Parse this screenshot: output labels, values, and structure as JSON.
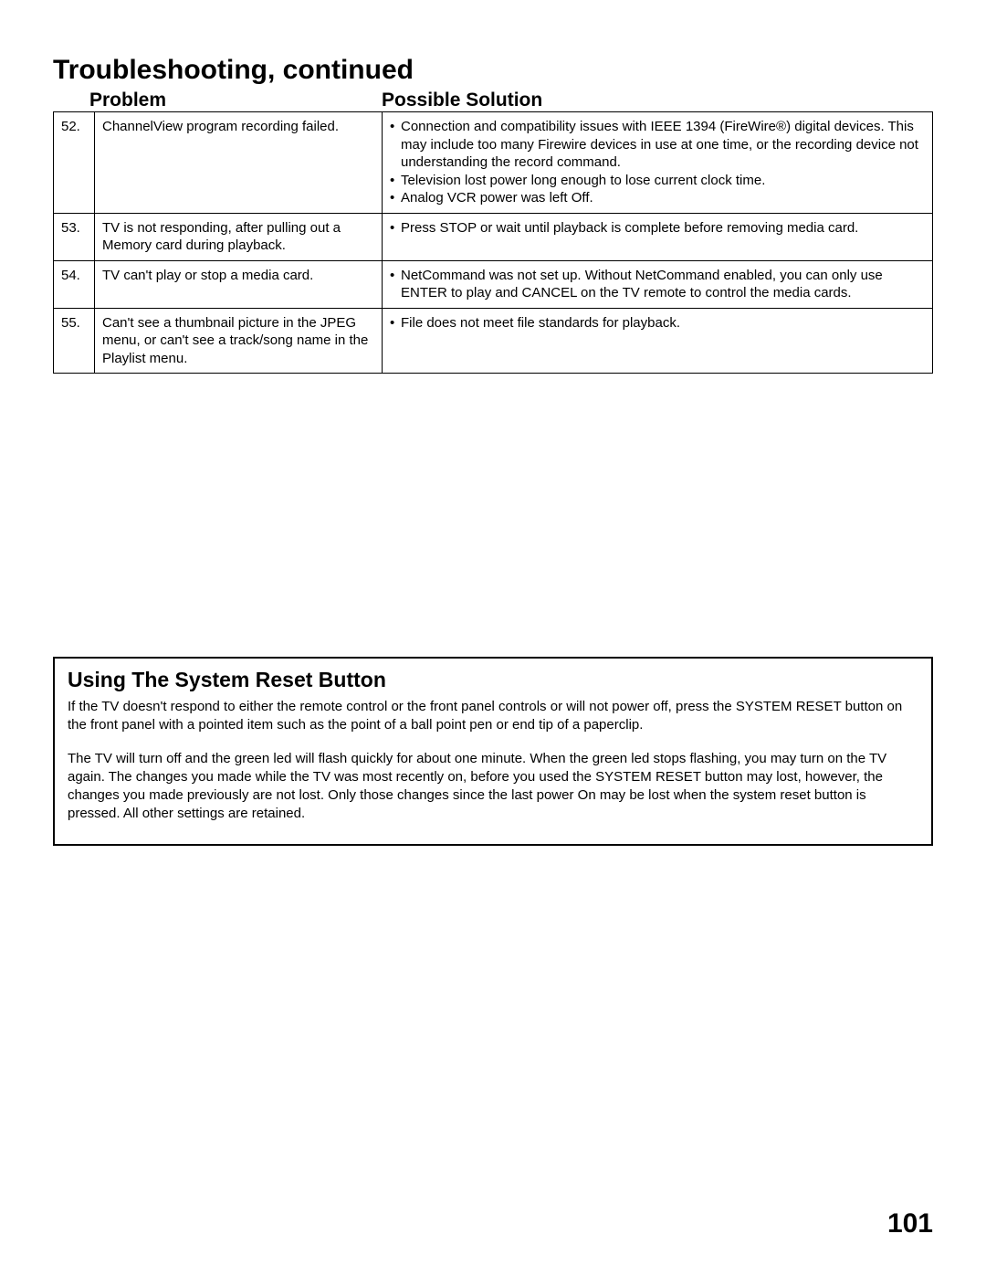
{
  "page_title": "Troubleshooting, continued",
  "columns": {
    "problem": "Problem",
    "solution": "Possible Solution"
  },
  "rows": [
    {
      "num": "52.",
      "problem": "ChannelView program recording failed.",
      "solutions": [
        "Connection and compatibility issues with IEEE 1394 (FireWire®) digital devices.  This may include too many Firewire devices in use at one time, or the recording device not understanding the record command.",
        "Television lost power long enough to lose current clock time.",
        "Analog VCR power was left Off."
      ]
    },
    {
      "num": "53.",
      "problem": "TV is not responding, after pulling out a Memory card during playback.",
      "solutions": [
        " Press STOP or wait until playback is complete before removing media card."
      ]
    },
    {
      "num": "54.",
      "problem": "TV can't play or stop a media card.",
      "solutions": [
        "NetCommand was not set up.  Without NetCommand enabled, you can only use ENTER to play and CANCEL on the TV remote to control the  media cards."
      ]
    },
    {
      "num": "55.",
      "problem": "Can't see a thumbnail picture in the JPEG menu, or can't see a track/song name in the Playlist menu.",
      "solutions": [
        "File does not meet file standards for playback."
      ]
    }
  ],
  "reset": {
    "title": "Using The System Reset Button",
    "para1": "If the TV doesn't respond to either the remote control or the front panel controls or will not power off, press the SYSTEM RESET button on the front panel with a pointed item such as the point of a ball point pen or end tip of a paperclip.",
    "para2": "The TV will turn off and the green led will flash quickly for about one minute.  When the green led stops flashing, you may turn on the TV again.  The changes you made while the TV was most recently on, before you used the SYSTEM RESET button may lost, however, the changes you made previously are not lost.  Only those changes since the last power On may be lost when the system reset button is pressed.  All other settings are retained."
  },
  "page_number": "101"
}
